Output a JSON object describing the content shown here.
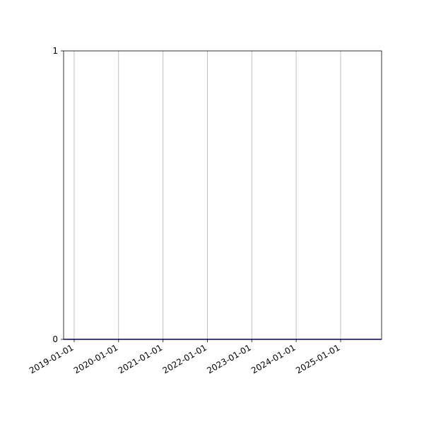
{
  "chart_data": {
    "type": "line",
    "title": "",
    "xlabel": "",
    "ylabel": "",
    "xlim": [
      "2018-10-06",
      "2025-12-04"
    ],
    "ylim": [
      0,
      1
    ],
    "x_ticks": [
      "2019-01-01",
      "2020-01-01",
      "2021-01-01",
      "2022-01-01",
      "2023-01-01",
      "2024-01-01",
      "2025-01-01"
    ],
    "y_ticks": [
      "0",
      "1"
    ],
    "grid": "x-axis vertical lines",
    "series": [
      {
        "x": [
          "2018-10-06",
          "2025-12-04"
        ],
        "y": [
          0,
          0
        ],
        "color": "#0000cc"
      }
    ],
    "grid_color": "#b0b0b0"
  }
}
